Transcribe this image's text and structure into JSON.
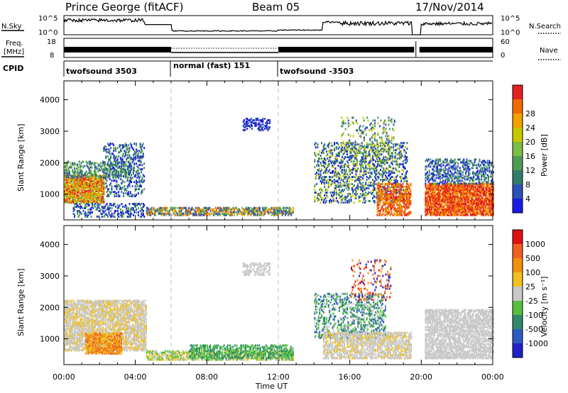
{
  "header": {
    "station": "Prince George (fitACF)",
    "beam": "Beam 05",
    "date": "17/Nov/2014"
  },
  "nsky_panel": {
    "left_label": "N.Sky",
    "left_ticks": [
      "10^5",
      "10^0"
    ],
    "right_ticks": [
      "10^5",
      "10^0"
    ],
    "right_label": "N.Search"
  },
  "freq_panel": {
    "left_label_line1": "Freq.",
    "left_label_line2": "[MHz]",
    "left_ticks": [
      "18",
      "8"
    ],
    "right_ticks": [
      "60",
      "0"
    ],
    "right_label": "Nave"
  },
  "cpid_panel": {
    "label": "CPID",
    "segments": [
      {
        "label": "twofsound 3503",
        "start_h": 0,
        "end_h": 6
      },
      {
        "label": "normal (fast) 151",
        "start_h": 6,
        "end_h": 12
      },
      {
        "label": "twofsound -3503",
        "start_h": 12,
        "end_h": 24
      }
    ]
  },
  "x_axis": {
    "title": "Time UT",
    "ticks": [
      "00:00",
      "04:00",
      "08:00",
      "12:00",
      "16:00",
      "20:00",
      "00:00"
    ],
    "tick_hours": [
      0,
      4,
      8,
      12,
      16,
      20,
      24
    ]
  },
  "chart_data": [
    {
      "type": "heatmap",
      "name": "power",
      "ylabel": "Slant Range [km]",
      "yticks": [
        1000,
        2000,
        3000,
        4000
      ],
      "ylim": [
        180,
        4600
      ],
      "xlim_hours": [
        0,
        24
      ],
      "colorbar_label": "Power [dB]",
      "colorbar_ticks": [
        "4",
        "8",
        "12",
        "16",
        "20",
        "24",
        "28"
      ],
      "colorbar_colors": [
        "#1a1ae6",
        "#2c4fb8",
        "#2f7d6a",
        "#4f9a52",
        "#7dbd45",
        "#c8c800",
        "#f0a000",
        "#f06a00",
        "#e62020"
      ],
      "dashed_lines_hours": [
        6,
        12
      ]
    },
    {
      "type": "heatmap",
      "name": "velocity",
      "ylabel": "Slant Range [km]",
      "yticks": [
        1000,
        2000,
        3000,
        4000
      ],
      "ylim": [
        180,
        4600
      ],
      "xlim_hours": [
        0,
        24
      ],
      "colorbar_label": "Velocity [m s⁻¹]",
      "colorbar_ticks": [
        "1000",
        "500",
        "100",
        "25",
        "-25",
        "-100",
        "-500",
        "-1000"
      ],
      "colorbar_colors": [
        "#2020c8",
        "#2c5cc0",
        "#2e8a6a",
        "#55c040",
        "#c8c8c8",
        "#f0c020",
        "#f09010",
        "#f06020",
        "#e01010"
      ],
      "dashed_lines_hours": [
        6,
        12
      ]
    }
  ]
}
